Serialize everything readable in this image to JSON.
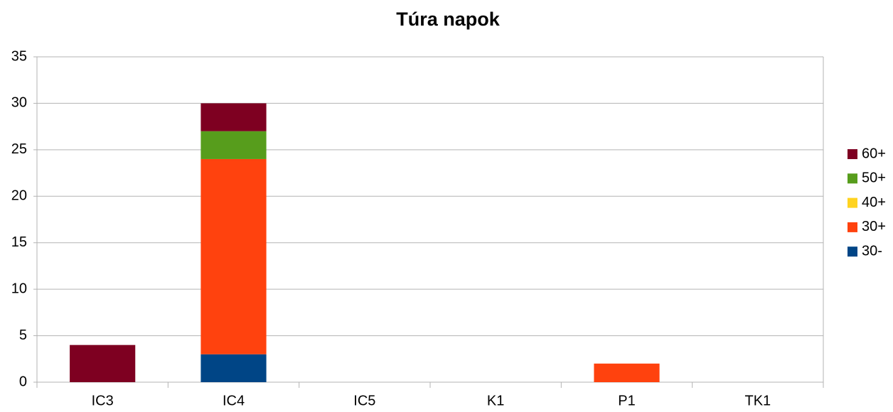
{
  "chart_data": {
    "type": "stacked_bar",
    "title": "Túra napok",
    "categories": [
      "IC3",
      "IC4",
      "IC5",
      "K1",
      "P1",
      "TK1"
    ],
    "series": [
      {
        "name": "30-",
        "color": "#004586",
        "values": [
          0,
          3,
          0,
          0,
          0,
          0
        ]
      },
      {
        "name": "30+",
        "color": "#ff420e",
        "values": [
          0,
          21,
          0,
          0,
          2,
          0
        ]
      },
      {
        "name": "40+",
        "color": "#ffd320",
        "values": [
          0,
          0,
          0,
          0,
          0,
          0
        ]
      },
      {
        "name": "50+",
        "color": "#579d1c",
        "values": [
          0,
          3,
          0,
          0,
          0,
          0
        ]
      },
      {
        "name": "60+",
        "color": "#7e0021",
        "values": [
          4,
          3,
          0,
          0,
          0,
          0
        ]
      }
    ],
    "ylim": [
      0,
      35
    ],
    "yticks": [
      0,
      5,
      10,
      15,
      20,
      25,
      30,
      35
    ],
    "grid": true,
    "legend": "right"
  }
}
